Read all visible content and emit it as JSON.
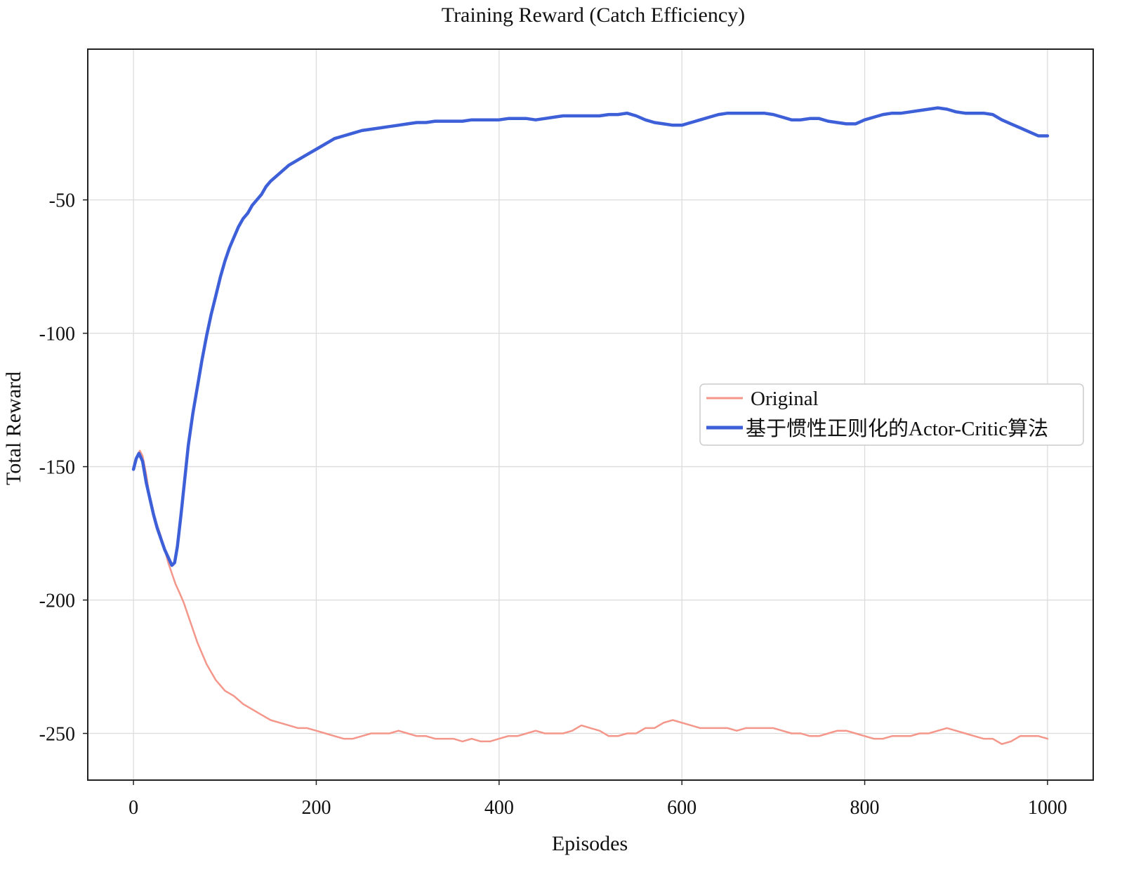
{
  "chart_data": {
    "type": "line",
    "title": "Training Reward (Catch Efficiency)",
    "xlabel": "Episodes",
    "ylabel": "Total Reward",
    "xlim": [
      -50,
      1050
    ],
    "ylim": [
      -267.5,
      6.5
    ],
    "xticks": [
      0,
      200,
      400,
      600,
      800,
      1000
    ],
    "yticks": [
      -50,
      -100,
      -150,
      -200,
      -250
    ],
    "grid": true,
    "legend_position": "right-center",
    "series": [
      {
        "name": "Original",
        "color": "#f4978a",
        "line_width": 2.5,
        "points": [
          [
            0,
            -150
          ],
          [
            3,
            -147
          ],
          [
            7,
            -144
          ],
          [
            10,
            -146
          ],
          [
            14,
            -153
          ],
          [
            18,
            -162
          ],
          [
            22,
            -168
          ],
          [
            26,
            -172
          ],
          [
            30,
            -176
          ],
          [
            34,
            -181
          ],
          [
            38,
            -186
          ],
          [
            42,
            -190
          ],
          [
            46,
            -194
          ],
          [
            50,
            -197
          ],
          [
            55,
            -201
          ],
          [
            60,
            -206
          ],
          [
            65,
            -211
          ],
          [
            70,
            -216
          ],
          [
            75,
            -220
          ],
          [
            80,
            -224
          ],
          [
            85,
            -227
          ],
          [
            90,
            -230
          ],
          [
            95,
            -232
          ],
          [
            100,
            -234
          ],
          [
            110,
            -236
          ],
          [
            120,
            -239
          ],
          [
            130,
            -241
          ],
          [
            140,
            -243
          ],
          [
            150,
            -245
          ],
          [
            160,
            -246
          ],
          [
            170,
            -247
          ],
          [
            180,
            -248
          ],
          [
            190,
            -248
          ],
          [
            200,
            -249
          ],
          [
            210,
            -250
          ],
          [
            220,
            -251
          ],
          [
            230,
            -252
          ],
          [
            240,
            -252
          ],
          [
            250,
            -251
          ],
          [
            260,
            -250
          ],
          [
            270,
            -250
          ],
          [
            280,
            -250
          ],
          [
            290,
            -249
          ],
          [
            300,
            -250
          ],
          [
            310,
            -251
          ],
          [
            320,
            -251
          ],
          [
            330,
            -252
          ],
          [
            340,
            -252
          ],
          [
            350,
            -252
          ],
          [
            360,
            -253
          ],
          [
            370,
            -252
          ],
          [
            380,
            -253
          ],
          [
            390,
            -253
          ],
          [
            400,
            -252
          ],
          [
            410,
            -251
          ],
          [
            420,
            -251
          ],
          [
            430,
            -250
          ],
          [
            440,
            -249
          ],
          [
            450,
            -250
          ],
          [
            460,
            -250
          ],
          [
            470,
            -250
          ],
          [
            480,
            -249
          ],
          [
            490,
            -247
          ],
          [
            500,
            -248
          ],
          [
            510,
            -249
          ],
          [
            520,
            -251
          ],
          [
            530,
            -251
          ],
          [
            540,
            -250
          ],
          [
            550,
            -250
          ],
          [
            560,
            -248
          ],
          [
            570,
            -248
          ],
          [
            580,
            -246
          ],
          [
            590,
            -245
          ],
          [
            600,
            -246
          ],
          [
            610,
            -247
          ],
          [
            620,
            -248
          ],
          [
            630,
            -248
          ],
          [
            640,
            -248
          ],
          [
            650,
            -248
          ],
          [
            660,
            -249
          ],
          [
            670,
            -248
          ],
          [
            680,
            -248
          ],
          [
            690,
            -248
          ],
          [
            700,
            -248
          ],
          [
            710,
            -249
          ],
          [
            720,
            -250
          ],
          [
            730,
            -250
          ],
          [
            740,
            -251
          ],
          [
            750,
            -251
          ],
          [
            760,
            -250
          ],
          [
            770,
            -249
          ],
          [
            780,
            -249
          ],
          [
            790,
            -250
          ],
          [
            800,
            -251
          ],
          [
            810,
            -252
          ],
          [
            820,
            -252
          ],
          [
            830,
            -251
          ],
          [
            840,
            -251
          ],
          [
            850,
            -251
          ],
          [
            860,
            -250
          ],
          [
            870,
            -250
          ],
          [
            880,
            -249
          ],
          [
            890,
            -248
          ],
          [
            900,
            -249
          ],
          [
            910,
            -250
          ],
          [
            920,
            -251
          ],
          [
            930,
            -252
          ],
          [
            940,
            -252
          ],
          [
            950,
            -254
          ],
          [
            960,
            -253
          ],
          [
            970,
            -251
          ],
          [
            980,
            -251
          ],
          [
            990,
            -251
          ],
          [
            1000,
            -252
          ]
        ]
      },
      {
        "name": "基于惯性正则化的Actor-Critic算法",
        "color": "#3d5fd8",
        "line_width": 4.5,
        "points": [
          [
            0,
            -151
          ],
          [
            3,
            -147
          ],
          [
            6,
            -145
          ],
          [
            10,
            -148
          ],
          [
            14,
            -156
          ],
          [
            18,
            -162
          ],
          [
            22,
            -168
          ],
          [
            26,
            -173
          ],
          [
            30,
            -177
          ],
          [
            34,
            -181
          ],
          [
            38,
            -184
          ],
          [
            42,
            -187
          ],
          [
            45,
            -186
          ],
          [
            48,
            -180
          ],
          [
            52,
            -168
          ],
          [
            56,
            -155
          ],
          [
            60,
            -142
          ],
          [
            65,
            -130
          ],
          [
            70,
            -120
          ],
          [
            75,
            -110
          ],
          [
            80,
            -101
          ],
          [
            85,
            -93
          ],
          [
            90,
            -86
          ],
          [
            95,
            -79
          ],
          [
            100,
            -73
          ],
          [
            105,
            -68
          ],
          [
            110,
            -64
          ],
          [
            115,
            -60
          ],
          [
            120,
            -57
          ],
          [
            125,
            -55
          ],
          [
            130,
            -52
          ],
          [
            135,
            -50
          ],
          [
            140,
            -48
          ],
          [
            145,
            -45
          ],
          [
            150,
            -43
          ],
          [
            160,
            -40
          ],
          [
            170,
            -37
          ],
          [
            180,
            -35
          ],
          [
            190,
            -33
          ],
          [
            200,
            -31
          ],
          [
            210,
            -29
          ],
          [
            220,
            -27
          ],
          [
            230,
            -26
          ],
          [
            240,
            -25
          ],
          [
            250,
            -24
          ],
          [
            260,
            -23.5
          ],
          [
            270,
            -23
          ],
          [
            280,
            -22.5
          ],
          [
            290,
            -22
          ],
          [
            300,
            -21.5
          ],
          [
            310,
            -21
          ],
          [
            320,
            -21
          ],
          [
            330,
            -20.5
          ],
          [
            340,
            -20.5
          ],
          [
            350,
            -20.5
          ],
          [
            360,
            -20.5
          ],
          [
            370,
            -20
          ],
          [
            380,
            -20
          ],
          [
            390,
            -20
          ],
          [
            400,
            -20
          ],
          [
            410,
            -19.5
          ],
          [
            420,
            -19.5
          ],
          [
            430,
            -19.5
          ],
          [
            440,
            -20
          ],
          [
            450,
            -19.5
          ],
          [
            460,
            -19
          ],
          [
            470,
            -18.5
          ],
          [
            480,
            -18.5
          ],
          [
            490,
            -18.5
          ],
          [
            500,
            -18.5
          ],
          [
            510,
            -18.5
          ],
          [
            520,
            -18
          ],
          [
            530,
            -18
          ],
          [
            540,
            -17.5
          ],
          [
            550,
            -18.5
          ],
          [
            560,
            -20
          ],
          [
            570,
            -21
          ],
          [
            580,
            -21.5
          ],
          [
            590,
            -22
          ],
          [
            600,
            -22
          ],
          [
            610,
            -21
          ],
          [
            620,
            -20
          ],
          [
            630,
            -19
          ],
          [
            640,
            -18
          ],
          [
            650,
            -17.5
          ],
          [
            660,
            -17.5
          ],
          [
            670,
            -17.5
          ],
          [
            680,
            -17.5
          ],
          [
            690,
            -17.5
          ],
          [
            700,
            -18
          ],
          [
            710,
            -19
          ],
          [
            720,
            -20
          ],
          [
            730,
            -20
          ],
          [
            740,
            -19.5
          ],
          [
            750,
            -19.5
          ],
          [
            760,
            -20.5
          ],
          [
            770,
            -21
          ],
          [
            780,
            -21.5
          ],
          [
            790,
            -21.5
          ],
          [
            800,
            -20
          ],
          [
            810,
            -19
          ],
          [
            820,
            -18
          ],
          [
            830,
            -17.5
          ],
          [
            840,
            -17.5
          ],
          [
            850,
            -17
          ],
          [
            860,
            -16.5
          ],
          [
            870,
            -16
          ],
          [
            880,
            -15.5
          ],
          [
            890,
            -16
          ],
          [
            900,
            -17
          ],
          [
            910,
            -17.5
          ],
          [
            920,
            -17.5
          ],
          [
            930,
            -17.5
          ],
          [
            940,
            -18
          ],
          [
            950,
            -20
          ],
          [
            960,
            -21.5
          ],
          [
            970,
            -23
          ],
          [
            980,
            -24.5
          ],
          [
            990,
            -26
          ],
          [
            1000,
            -26
          ]
        ]
      }
    ]
  }
}
